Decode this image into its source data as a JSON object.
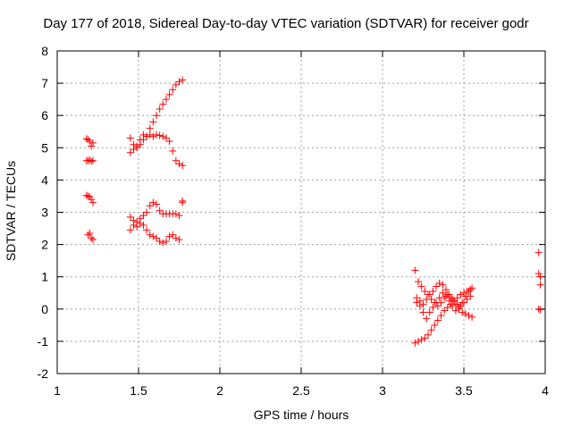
{
  "chart_data": {
    "type": "scatter",
    "title": "Day 177 of 2018, Sidereal Day-to-day VTEC variation (SDTVAR) for receiver godr",
    "xlabel": "GPS time / hours",
    "ylabel": "SDTVAR / TECUs",
    "xlim": [
      1,
      4
    ],
    "ylim": [
      -2,
      8
    ],
    "xticks": [
      "1",
      "1.5",
      "2",
      "2.5",
      "3",
      "3.5",
      "4"
    ],
    "yticks": [
      "-2",
      "-1",
      "0",
      "1",
      "2",
      "3",
      "4",
      "5",
      "6",
      "7",
      "8"
    ],
    "grid": true,
    "marker": "+",
    "color": "#ff0000",
    "series": [
      {
        "name": "SDTVAR",
        "x": [
          1.18,
          1.19,
          1.2,
          1.21,
          1.22,
          1.18,
          1.19,
          1.2,
          1.21,
          1.22,
          1.18,
          1.19,
          1.2,
          1.21,
          1.22,
          1.19,
          1.2,
          1.21,
          1.22,
          1.45,
          1.47,
          1.49,
          1.51,
          1.53,
          1.55,
          1.57,
          1.59,
          1.61,
          1.63,
          1.65,
          1.67,
          1.69,
          1.71,
          1.73,
          1.75,
          1.77,
          1.45,
          1.47,
          1.49,
          1.51,
          1.53,
          1.55,
          1.57,
          1.59,
          1.61,
          1.63,
          1.65,
          1.67,
          1.69,
          1.71,
          1.73,
          1.75,
          1.77,
          1.45,
          1.47,
          1.49,
          1.51,
          1.53,
          1.55,
          1.57,
          1.59,
          1.61,
          1.63,
          1.65,
          1.67,
          1.69,
          1.71,
          1.73,
          1.75,
          1.77,
          1.45,
          1.47,
          1.49,
          1.51,
          1.53,
          1.55,
          1.57,
          1.59,
          1.61,
          1.63,
          1.65,
          1.67,
          1.69,
          1.71,
          1.73,
          1.75,
          1.77,
          3.2,
          3.22,
          3.24,
          3.26,
          3.28,
          3.3,
          3.32,
          3.34,
          3.36,
          3.38,
          3.4,
          3.42,
          3.44,
          3.46,
          3.48,
          3.5,
          3.52,
          3.54,
          3.2,
          3.22,
          3.24,
          3.26,
          3.28,
          3.3,
          3.32,
          3.34,
          3.36,
          3.38,
          3.4,
          3.42,
          3.44,
          3.46,
          3.48,
          3.5,
          3.52,
          3.54,
          3.21,
          3.23,
          3.25,
          3.27,
          3.29,
          3.31,
          3.33,
          3.35,
          3.37,
          3.39,
          3.41,
          3.43,
          3.45,
          3.47,
          3.49,
          3.51,
          3.53,
          3.55,
          3.21,
          3.23,
          3.25,
          3.27,
          3.29,
          3.31,
          3.33,
          3.35,
          3.37,
          3.39,
          3.41,
          3.43,
          3.45,
          3.47,
          3.49,
          3.51,
          3.53,
          3.55,
          3.96,
          3.96,
          3.97,
          3.97,
          3.96,
          3.97
        ],
        "y": [
          5.28,
          5.25,
          5.2,
          5.05,
          5.15,
          4.6,
          4.6,
          4.62,
          4.58,
          4.6,
          3.52,
          3.5,
          3.48,
          3.4,
          3.3,
          2.3,
          2.35,
          2.2,
          2.15,
          4.85,
          4.95,
          5.05,
          5.1,
          5.25,
          5.35,
          5.6,
          5.8,
          6.0,
          6.2,
          6.35,
          6.5,
          6.65,
          6.8,
          6.95,
          7.05,
          7.1,
          5.3,
          5.1,
          5.0,
          5.25,
          5.4,
          5.35,
          5.4,
          5.35,
          5.4,
          5.38,
          5.35,
          5.3,
          5.2,
          4.9,
          4.6,
          4.5,
          4.45,
          2.85,
          2.75,
          2.7,
          2.8,
          2.9,
          3.0,
          3.2,
          3.3,
          3.25,
          3.05,
          2.95,
          2.95,
          2.95,
          2.95,
          2.95,
          2.9,
          3.35,
          2.45,
          2.6,
          2.55,
          2.65,
          2.6,
          2.45,
          2.3,
          2.25,
          2.2,
          2.1,
          2.05,
          2.1,
          2.25,
          2.3,
          2.2,
          2.15,
          3.3,
          1.2,
          0.85,
          0.7,
          0.55,
          0.45,
          0.3,
          0.2,
          0.1,
          0.2,
          0.35,
          0.45,
          0.35,
          0.25,
          0.15,
          0.1,
          0.2,
          0.3,
          0.4,
          -1.05,
          -1.0,
          -0.95,
          -0.9,
          -0.8,
          -0.65,
          -0.5,
          -0.35,
          -0.2,
          -0.05,
          0.05,
          0.15,
          0.25,
          0.35,
          0.45,
          0.5,
          0.55,
          0.6,
          0.2,
          0.25,
          0.15,
          0.3,
          0.45,
          0.55,
          0.7,
          0.8,
          0.75,
          0.6,
          0.45,
          0.3,
          0.15,
          0.0,
          -0.1,
          -0.15,
          -0.2,
          -0.25,
          0.35,
          0.1,
          -0.1,
          -0.3,
          -0.1,
          0.05,
          0.2,
          0.35,
          0.5,
          0.4,
          0.25,
          0.1,
          -0.05,
          0.05,
          0.2,
          0.4,
          0.55,
          0.65,
          1.75,
          1.1,
          1.0,
          0.75,
          0.0,
          -0.02
        ]
      }
    ]
  }
}
